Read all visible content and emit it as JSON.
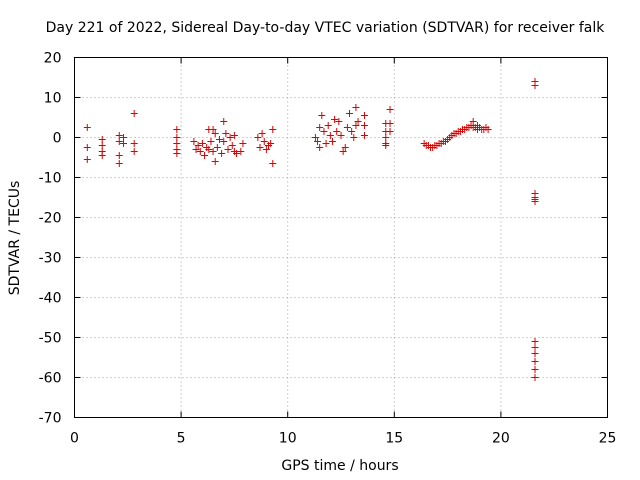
{
  "chart_data": {
    "type": "scatter",
    "title": "Day 221 of 2022, Sidereal Day-to-day VTEC variation (SDTVAR) for receiver falk",
    "xlabel": "GPS time / hours",
    "ylabel": "SDTVAR / TECUs",
    "xlim": [
      0,
      25
    ],
    "ylim": [
      -70,
      20
    ],
    "xticks": [
      0,
      5,
      10,
      15,
      20,
      25
    ],
    "yticks": [
      -70,
      -60,
      -50,
      -40,
      -30,
      -20,
      -10,
      0,
      10,
      20
    ],
    "grid": true,
    "marker": "+",
    "color": "#e00000",
    "series": [
      {
        "name": "SDTVAR",
        "points": [
          [
            0.6,
            2.5
          ],
          [
            0.6,
            -2.5
          ],
          [
            0.6,
            -5.5
          ],
          [
            1.3,
            -0.5
          ],
          [
            1.3,
            -2.0
          ],
          [
            1.3,
            -3.5
          ],
          [
            1.3,
            -4.5
          ],
          [
            2.1,
            0.5
          ],
          [
            2.1,
            -1.0
          ],
          [
            2.1,
            -4.5
          ],
          [
            2.1,
            -6.5
          ],
          [
            2.3,
            0.0
          ],
          [
            2.3,
            -1.5
          ],
          [
            2.8,
            6.0
          ],
          [
            2.8,
            -1.5
          ],
          [
            2.8,
            -3.5
          ],
          [
            4.8,
            2.0
          ],
          [
            4.8,
            0.0
          ],
          [
            4.8,
            -1.5
          ],
          [
            4.8,
            -3.0
          ],
          [
            4.8,
            -4.0
          ],
          [
            5.6,
            -1.0
          ],
          [
            5.7,
            -3.0
          ],
          [
            5.8,
            -2.0
          ],
          [
            5.9,
            -3.5
          ],
          [
            6.0,
            -1.5
          ],
          [
            6.1,
            -4.5
          ],
          [
            6.2,
            -2.5
          ],
          [
            6.3,
            2.0
          ],
          [
            6.3,
            -3.0
          ],
          [
            6.4,
            -1.0
          ],
          [
            6.5,
            2.0
          ],
          [
            6.5,
            -3.5
          ],
          [
            6.6,
            1.0
          ],
          [
            6.6,
            -6.0
          ],
          [
            6.7,
            -2.5
          ],
          [
            6.8,
            -0.5
          ],
          [
            6.9,
            -4.0
          ],
          [
            7.0,
            -1.0
          ],
          [
            7.0,
            4.0
          ],
          [
            7.1,
            1.0
          ],
          [
            7.2,
            -3.0
          ],
          [
            7.3,
            0.0
          ],
          [
            7.4,
            -2.0
          ],
          [
            7.5,
            0.5
          ],
          [
            7.5,
            -3.5
          ],
          [
            7.6,
            -4.0
          ],
          [
            7.8,
            -3.5
          ],
          [
            7.9,
            -1.5
          ],
          [
            8.6,
            0.0
          ],
          [
            8.7,
            -2.5
          ],
          [
            8.8,
            1.0
          ],
          [
            8.9,
            -1.0
          ],
          [
            9.0,
            -3.0
          ],
          [
            9.1,
            -2.0
          ],
          [
            9.2,
            -1.5
          ],
          [
            9.3,
            2.0
          ],
          [
            9.3,
            -6.5
          ],
          [
            11.3,
            0.0
          ],
          [
            11.4,
            -1.0
          ],
          [
            11.5,
            -2.5
          ],
          [
            11.5,
            2.5
          ],
          [
            11.6,
            5.5
          ],
          [
            11.7,
            1.5
          ],
          [
            11.8,
            -1.5
          ],
          [
            11.9,
            3.0
          ],
          [
            12.0,
            0.5
          ],
          [
            12.1,
            -1.0
          ],
          [
            12.2,
            4.5
          ],
          [
            12.3,
            1.5
          ],
          [
            12.4,
            4.0
          ],
          [
            12.5,
            0.5
          ],
          [
            12.6,
            -3.5
          ],
          [
            12.7,
            -2.5
          ],
          [
            12.8,
            2.5
          ],
          [
            12.9,
            6.0
          ],
          [
            13.0,
            1.5
          ],
          [
            13.1,
            0.0
          ],
          [
            13.2,
            3.0
          ],
          [
            13.2,
            7.5
          ],
          [
            13.3,
            4.0
          ],
          [
            13.6,
            5.5
          ],
          [
            13.6,
            3.0
          ],
          [
            13.6,
            0.5
          ],
          [
            14.6,
            3.5
          ],
          [
            14.6,
            1.5
          ],
          [
            14.6,
            0.0
          ],
          [
            14.6,
            -1.5
          ],
          [
            14.6,
            -2.0
          ],
          [
            14.8,
            7.0
          ],
          [
            14.8,
            3.5
          ],
          [
            14.8,
            1.5
          ],
          [
            16.4,
            -1.5
          ],
          [
            16.5,
            -2.0
          ],
          [
            16.6,
            -2.0
          ],
          [
            16.7,
            -2.5
          ],
          [
            16.8,
            -2.5
          ],
          [
            16.9,
            -2.0
          ],
          [
            17.0,
            -2.0
          ],
          [
            17.1,
            -1.5
          ],
          [
            17.2,
            -1.5
          ],
          [
            17.3,
            -1.0
          ],
          [
            17.4,
            -1.0
          ],
          [
            17.5,
            -0.5
          ],
          [
            17.6,
            0.0
          ],
          [
            17.7,
            0.5
          ],
          [
            17.8,
            1.0
          ],
          [
            17.9,
            1.0
          ],
          [
            18.0,
            1.5
          ],
          [
            18.1,
            1.5
          ],
          [
            18.2,
            2.0
          ],
          [
            18.3,
            2.0
          ],
          [
            18.4,
            2.5
          ],
          [
            18.5,
            2.5
          ],
          [
            18.6,
            3.0
          ],
          [
            18.7,
            2.5
          ],
          [
            18.8,
            2.5
          ],
          [
            18.9,
            2.0
          ],
          [
            19.0,
            2.5
          ],
          [
            19.1,
            2.0
          ],
          [
            19.2,
            2.0
          ],
          [
            19.3,
            2.5
          ],
          [
            19.4,
            2.0
          ],
          [
            18.7,
            4.0
          ],
          [
            18.9,
            3.0
          ],
          [
            21.6,
            14.0
          ],
          [
            21.6,
            13.0
          ],
          [
            21.6,
            -14.0
          ],
          [
            21.6,
            -15.0
          ],
          [
            21.6,
            -15.5
          ],
          [
            21.6,
            -16.0
          ],
          [
            21.6,
            -51.0
          ],
          [
            21.6,
            -52.5
          ],
          [
            21.6,
            -54.0
          ],
          [
            21.6,
            -56.0
          ],
          [
            21.6,
            -58.0
          ],
          [
            21.6,
            -60.0
          ]
        ]
      }
    ]
  }
}
